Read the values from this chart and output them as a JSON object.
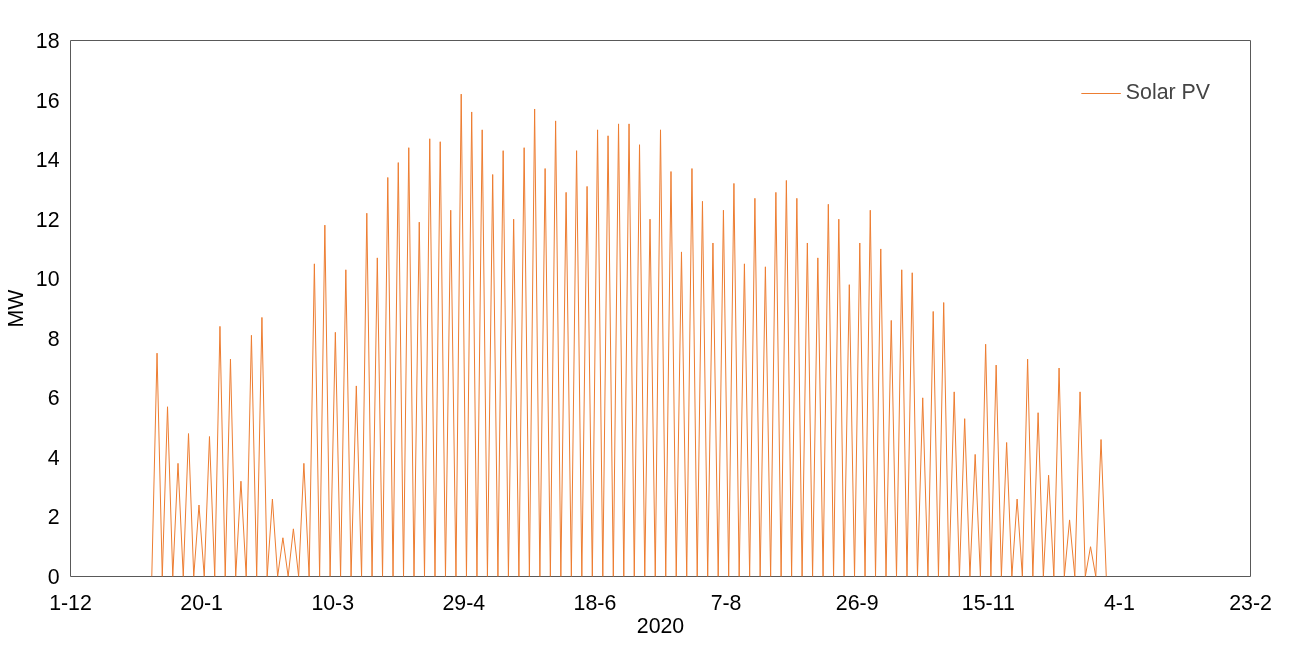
{
  "chart_data": {
    "type": "line",
    "xlabel": "2020",
    "ylabel": "MW",
    "x": [
      "2020-01-01",
      "2020-01-03",
      "2020-01-05",
      "2020-01-07",
      "2020-01-09",
      "2020-01-11",
      "2020-01-13",
      "2020-01-15",
      "2020-01-17",
      "2020-01-19",
      "2020-01-21",
      "2020-01-23",
      "2020-01-25",
      "2020-01-27",
      "2020-01-29",
      "2020-01-31",
      "2020-02-02",
      "2020-02-04",
      "2020-02-06",
      "2020-02-08",
      "2020-02-10",
      "2020-02-12",
      "2020-02-14",
      "2020-02-16",
      "2020-02-18",
      "2020-02-20",
      "2020-02-22",
      "2020-02-24",
      "2020-02-26",
      "2020-02-28",
      "2020-03-01",
      "2020-03-03",
      "2020-03-05",
      "2020-03-07",
      "2020-03-09",
      "2020-03-11",
      "2020-03-13",
      "2020-03-15",
      "2020-03-17",
      "2020-03-19",
      "2020-03-21",
      "2020-03-23",
      "2020-03-25",
      "2020-03-27",
      "2020-03-29",
      "2020-03-31",
      "2020-04-02",
      "2020-04-04",
      "2020-04-06",
      "2020-04-08",
      "2020-04-10",
      "2020-04-12",
      "2020-04-14",
      "2020-04-16",
      "2020-04-18",
      "2020-04-20",
      "2020-04-22",
      "2020-04-24",
      "2020-04-26",
      "2020-04-28",
      "2020-04-30",
      "2020-05-02",
      "2020-05-04",
      "2020-05-06",
      "2020-05-08",
      "2020-05-10",
      "2020-05-12",
      "2020-05-14",
      "2020-05-16",
      "2020-05-18",
      "2020-05-20",
      "2020-05-22",
      "2020-05-24",
      "2020-05-26",
      "2020-05-28",
      "2020-05-30",
      "2020-06-01",
      "2020-06-03",
      "2020-06-05",
      "2020-06-07",
      "2020-06-09",
      "2020-06-11",
      "2020-06-13",
      "2020-06-15",
      "2020-06-17",
      "2020-06-19",
      "2020-06-21",
      "2020-06-23",
      "2020-06-25",
      "2020-06-27",
      "2020-06-29",
      "2020-07-01",
      "2020-07-03",
      "2020-07-05",
      "2020-07-07",
      "2020-07-09",
      "2020-07-11",
      "2020-07-13",
      "2020-07-15",
      "2020-07-17",
      "2020-07-19",
      "2020-07-21",
      "2020-07-23",
      "2020-07-25",
      "2020-07-27",
      "2020-07-29",
      "2020-07-31",
      "2020-08-02",
      "2020-08-04",
      "2020-08-06",
      "2020-08-08",
      "2020-08-10",
      "2020-08-12",
      "2020-08-14",
      "2020-08-16",
      "2020-08-18",
      "2020-08-20",
      "2020-08-22",
      "2020-08-24",
      "2020-08-26",
      "2020-08-28",
      "2020-08-30",
      "2020-09-01",
      "2020-09-03",
      "2020-09-05",
      "2020-09-07",
      "2020-09-09",
      "2020-09-11",
      "2020-09-13",
      "2020-09-15",
      "2020-09-17",
      "2020-09-19",
      "2020-09-21",
      "2020-09-23",
      "2020-09-25",
      "2020-09-27",
      "2020-09-29",
      "2020-10-01",
      "2020-10-03",
      "2020-10-05",
      "2020-10-07",
      "2020-10-09",
      "2020-10-11",
      "2020-10-13",
      "2020-10-15",
      "2020-10-17",
      "2020-10-19",
      "2020-10-21",
      "2020-10-23",
      "2020-10-25",
      "2020-10-27",
      "2020-10-29",
      "2020-10-31",
      "2020-11-02",
      "2020-11-04",
      "2020-11-06",
      "2020-11-08",
      "2020-11-10",
      "2020-11-12",
      "2020-11-14",
      "2020-11-16",
      "2020-11-18",
      "2020-11-20",
      "2020-11-22",
      "2020-11-24",
      "2020-11-26",
      "2020-11-28",
      "2020-11-30",
      "2020-12-02",
      "2020-12-04",
      "2020-12-06",
      "2020-12-08",
      "2020-12-10",
      "2020-12-12",
      "2020-12-14",
      "2020-12-16",
      "2020-12-18",
      "2020-12-20",
      "2020-12-22",
      "2020-12-24",
      "2020-12-26",
      "2020-12-28",
      "2020-12-30"
    ],
    "series": [
      {
        "name": "Solar PV",
        "color": "#ed7d31",
        "values": [
          0,
          7.5,
          0,
          5.7,
          0,
          3.8,
          0,
          4.8,
          0,
          2.4,
          0,
          4.7,
          0,
          8.4,
          0,
          7.3,
          0,
          3.2,
          0,
          8.1,
          0,
          8.7,
          0,
          2.6,
          0,
          1.3,
          0,
          1.6,
          0,
          3.8,
          0,
          10.5,
          0,
          11.8,
          0,
          8.2,
          0,
          10.3,
          0,
          6.4,
          0,
          12.2,
          0,
          10.7,
          0,
          13.4,
          0,
          13.9,
          0,
          14.4,
          0,
          11.9,
          0,
          14.7,
          0,
          14.6,
          0,
          12.3,
          0,
          16.2,
          0,
          15.6,
          0,
          15.0,
          0,
          13.5,
          0,
          14.3,
          0,
          12.0,
          0,
          14.4,
          0,
          15.7,
          0,
          13.7,
          0,
          15.3,
          0,
          12.9,
          0,
          14.3,
          0,
          13.1,
          0,
          15.0,
          0,
          14.8,
          0,
          15.2,
          0,
          15.2,
          0,
          14.5,
          0,
          12.0,
          0,
          15.0,
          0,
          13.6,
          0,
          10.9,
          0,
          13.7,
          0,
          12.6,
          0,
          11.2,
          0,
          12.3,
          0,
          13.2,
          0,
          10.5,
          0,
          12.7,
          0,
          10.4,
          0,
          12.9,
          0,
          13.3,
          0,
          12.7,
          0,
          11.2,
          0,
          10.7,
          0,
          12.5,
          0,
          12.0,
          0,
          9.8,
          0,
          11.2,
          0,
          12.3,
          0,
          11.0,
          0,
          8.6,
          0,
          10.3,
          0,
          10.2,
          0,
          6.0,
          0,
          8.9,
          0,
          9.2,
          0,
          6.2,
          0,
          5.3,
          0,
          4.1,
          0,
          7.8,
          0,
          7.1,
          0,
          4.5,
          0,
          2.6,
          0,
          7.3,
          0,
          5.5,
          0,
          3.4,
          0,
          7.0,
          0,
          1.9,
          0,
          6.2,
          0,
          1.0,
          0,
          4.6,
          0
        ]
      }
    ],
    "xlim": [
      "2019-12-01",
      "2021-02-23"
    ],
    "xticks": [
      {
        "value": "2019-12-01",
        "label": "1-12"
      },
      {
        "value": "2020-01-20",
        "label": "20-1"
      },
      {
        "value": "2020-03-10",
        "label": "10-3"
      },
      {
        "value": "2020-04-29",
        "label": "29-4"
      },
      {
        "value": "2020-06-18",
        "label": "18-6"
      },
      {
        "value": "2020-08-07",
        "label": "7-8"
      },
      {
        "value": "2020-09-26",
        "label": "26-9"
      },
      {
        "value": "2020-11-15",
        "label": "15-11"
      },
      {
        "value": "2021-01-04",
        "label": "4-1"
      },
      {
        "value": "2021-02-23",
        "label": "23-2"
      }
    ],
    "ylim": [
      0,
      18
    ],
    "yticks": [
      0,
      2,
      4,
      6,
      8,
      10,
      12,
      14,
      16,
      18
    ],
    "grid": false,
    "legend": "top right",
    "marker": "none",
    "line_style": "solid"
  }
}
